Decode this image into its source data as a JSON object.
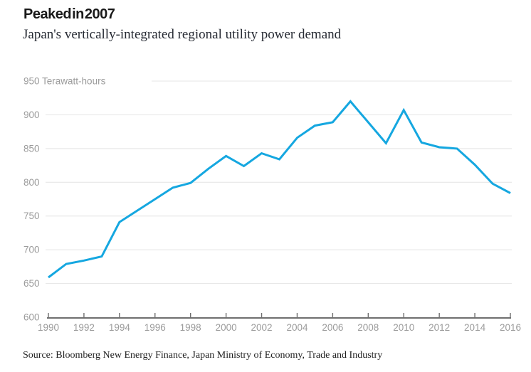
{
  "header": {
    "title": "Peaked in 2007",
    "subtitle": "Japan's vertically-integrated regional utility power demand"
  },
  "chart_data": {
    "type": "line",
    "title": "Peaked in 2007",
    "subtitle": "Japan's vertically-integrated regional utility power demand",
    "unit_label": "Terawatt-hours",
    "x": [
      1990,
      1991,
      1992,
      1993,
      1994,
      1995,
      1996,
      1997,
      1998,
      1999,
      2000,
      2001,
      2002,
      2003,
      2004,
      2005,
      2006,
      2007,
      2008,
      2009,
      2010,
      2011,
      2012,
      2013,
      2014,
      2015,
      2016
    ],
    "values": [
      659,
      679,
      684,
      690,
      741,
      758,
      775,
      792,
      799,
      820,
      839,
      824,
      843,
      834,
      866,
      884,
      889,
      920,
      889,
      858,
      907,
      859,
      852,
      850,
      826,
      798,
      784
    ],
    "ylim": [
      600,
      950
    ],
    "y_ticks": [
      600,
      650,
      700,
      750,
      800,
      850,
      900,
      950
    ],
    "x_ticks": [
      1990,
      1992,
      1994,
      1996,
      1998,
      2000,
      2002,
      2004,
      2006,
      2008,
      2010,
      2012,
      2014,
      2016
    ],
    "grid": true,
    "legend": "none",
    "line_color": "#15a7e0",
    "grid_color": "#e4e4e4",
    "axis_color": "#6f6f6f",
    "tick_label_color": "#9b9b9b"
  },
  "footer": {
    "source": "Source: Bloomberg New Energy Finance, Japan Ministry of Economy, Trade and Industry"
  }
}
